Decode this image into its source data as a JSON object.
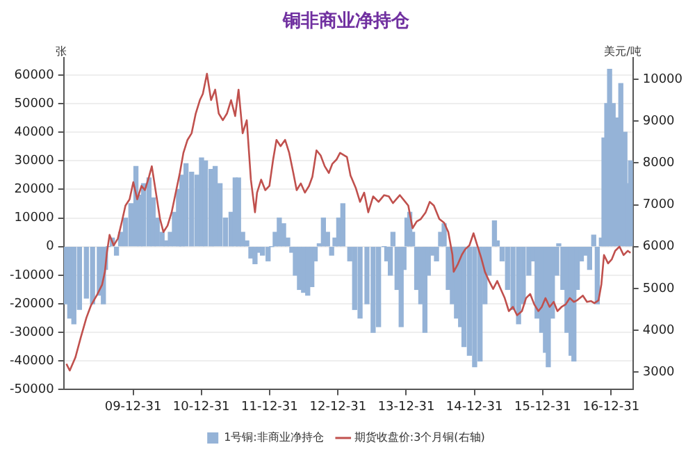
{
  "chart_data": {
    "type": "bar",
    "title": "铜非商业净持仓",
    "ylabel": "张",
    "y2label": "美元/吨",
    "xlim": [
      "2008-12-25",
      "2017-04-27"
    ],
    "xticks": [
      {
        "value": "2009-12-31",
        "label": "09-12-31"
      },
      {
        "value": "2010-12-31",
        "label": "10-12-31"
      },
      {
        "value": "2011-12-31",
        "label": "11-12-31"
      },
      {
        "value": "2012-12-31",
        "label": "12-12-31"
      },
      {
        "value": "2013-12-31",
        "label": "13-12-31"
      },
      {
        "value": "2014-12-31",
        "label": "14-12-31"
      },
      {
        "value": "2015-12-31",
        "label": "15-12-31"
      },
      {
        "value": "2016-12-31",
        "label": "16-12-31"
      }
    ],
    "ylim": [
      -50000,
      66000
    ],
    "yticks": [
      -50000,
      -40000,
      -30000,
      -20000,
      -10000,
      0,
      10000,
      20000,
      30000,
      40000,
      50000,
      60000
    ],
    "y2lim": [
      2585,
      10510
    ],
    "y2ticks": [
      3000,
      4000,
      5000,
      6000,
      7000,
      8000,
      9000,
      10000
    ],
    "grid": "y",
    "legend": "bottom",
    "series": [
      {
        "name": "1号铜:非商业净持仓",
        "color": "#95b3d7",
        "x": [
          "2009-01-08",
          "2009-01-26",
          "2009-02-17",
          "2009-03-19",
          "2009-04-25",
          "2009-05-28",
          "2009-07-03",
          "2009-07-25",
          "2009-08-05",
          "2009-08-20",
          "2009-09-11",
          "2009-10-03",
          "2009-10-25",
          "2009-11-20",
          "2009-12-19",
          "2010-01-15",
          "2010-02-06",
          "2010-02-25",
          "2010-03-26",
          "2010-04-17",
          "2010-05-09",
          "2010-06-04",
          "2010-06-26",
          "2010-07-18",
          "2010-08-09",
          "2010-08-31",
          "2010-09-18",
          "2010-10-10",
          "2010-11-09",
          "2010-12-08",
          "2011-01-01",
          "2011-01-22",
          "2011-02-21",
          "2011-03-15",
          "2011-04-10",
          "2011-05-09",
          "2011-06-08",
          "2011-06-30",
          "2011-07-18",
          "2011-08-09",
          "2011-08-31",
          "2011-09-22",
          "2011-10-14",
          "2011-11-01",
          "2011-11-23",
          "2011-12-23",
          "2012-01-11",
          "2012-01-30",
          "2012-02-21",
          "2012-03-15",
          "2012-04-06",
          "2012-04-28",
          "2012-05-17",
          "2012-06-08",
          "2012-06-30",
          "2012-07-22",
          "2012-08-13",
          "2012-08-31",
          "2012-09-22",
          "2012-10-14",
          "2012-11-05",
          "2012-11-27",
          "2012-12-15",
          "2013-01-04",
          "2013-01-26",
          "2013-03-04",
          "2013-03-30",
          "2013-04-28",
          "2013-06-04",
          "2013-07-07",
          "2013-08-05",
          "2013-09-04",
          "2013-09-18",
          "2013-10-07",
          "2013-10-21",
          "2013-11-12",
          "2013-12-04",
          "2013-12-19",
          "2014-01-04",
          "2014-01-19",
          "2014-02-03",
          "2014-02-25",
          "2014-03-19",
          "2014-04-10",
          "2014-04-28",
          "2014-05-20",
          "2014-06-11",
          "2014-07-03",
          "2014-07-22",
          "2014-08-13",
          "2014-09-04",
          "2014-09-26",
          "2014-10-18",
          "2014-11-05",
          "2014-12-04",
          "2015-01-01",
          "2015-01-30",
          "2015-02-25",
          "2015-03-19",
          "2015-04-17",
          "2015-05-02",
          "2015-05-28",
          "2015-06-26",
          "2015-07-25",
          "2015-08-24",
          "2015-09-18",
          "2015-10-18",
          "2015-11-09",
          "2015-12-01",
          "2015-12-26",
          "2016-01-15",
          "2016-01-30",
          "2016-02-21",
          "2016-03-15",
          "2016-03-26",
          "2016-04-17",
          "2016-05-09",
          "2016-05-31",
          "2016-06-15",
          "2016-07-03",
          "2016-07-25",
          "2016-08-16",
          "2016-09-07",
          "2016-09-29",
          "2016-10-18",
          "2016-11-09",
          "2016-11-23",
          "2016-12-08",
          "2016-12-23",
          "2017-01-11",
          "2017-01-30",
          "2017-02-21",
          "2017-03-15",
          "2017-03-30",
          "2017-04-14"
        ],
        "values": [
          -20000,
          -25000,
          -27000,
          -22000,
          -18000,
          -20000,
          -17000,
          -20000,
          -8000,
          0,
          3000,
          -3000,
          5000,
          10000,
          15000,
          28000,
          18000,
          22000,
          24000,
          17000,
          10000,
          5000,
          2000,
          5000,
          12000,
          20000,
          25000,
          29000,
          26000,
          25000,
          31000,
          30000,
          27000,
          28000,
          22000,
          10000,
          12000,
          24000,
          24000,
          5000,
          2000,
          -4000,
          -6000,
          -2000,
          -3000,
          -5000,
          0,
          5000,
          10000,
          8000,
          3000,
          -2000,
          -10000,
          -15000,
          -16000,
          -17000,
          -14000,
          -5000,
          1000,
          10000,
          5000,
          -3000,
          3000,
          10000,
          15000,
          -5000,
          -22000,
          -25000,
          -20000,
          -30000,
          -28000,
          0,
          -5000,
          -10000,
          5000,
          -15000,
          -28000,
          -8000,
          10000,
          12000,
          5000,
          -15000,
          -20000,
          -30000,
          -10000,
          -3000,
          -5000,
          5000,
          8000,
          -15000,
          -20000,
          -25000,
          -28000,
          -35000,
          -38000,
          -42000,
          -40000,
          -20000,
          -10000,
          9000,
          2000,
          -5000,
          -15000,
          -22000,
          -27000,
          -20000,
          -10000,
          -5000,
          -25000,
          -30000,
          -37000,
          -42000,
          -25000,
          -10000,
          1000,
          -15000,
          -30000,
          -38000,
          -40000,
          -15000,
          -5000,
          -3000,
          -8000,
          4000,
          -20000,
          3000,
          38000,
          50000,
          62000,
          50000,
          45000,
          57000,
          40000,
          22000,
          30000
        ]
      },
      {
        "name": "期货收盘价:3个月铜(右轴)",
        "type": "line",
        "axis": "y2",
        "color": "#c0504d",
        "x": [
          "2009-01-08",
          "2009-01-26",
          "2009-02-25",
          "2009-03-26",
          "2009-04-25",
          "2009-05-20",
          "2009-06-19",
          "2009-07-18",
          "2009-08-02",
          "2009-08-13",
          "2009-08-27",
          "2009-09-18",
          "2009-10-10",
          "2009-11-01",
          "2009-11-20",
          "2009-12-12",
          "2010-01-01",
          "2010-01-22",
          "2010-02-14",
          "2010-03-04",
          "2010-03-26",
          "2010-04-10",
          "2010-05-02",
          "2010-05-24",
          "2010-06-11",
          "2010-07-03",
          "2010-07-25",
          "2010-08-16",
          "2010-09-07",
          "2010-09-26",
          "2010-10-18",
          "2010-11-09",
          "2010-12-01",
          "2010-12-23",
          "2011-01-08",
          "2011-01-30",
          "2011-02-21",
          "2011-03-15",
          "2011-04-03",
          "2011-04-25",
          "2011-05-17",
          "2011-06-08",
          "2011-06-30",
          "2011-07-18",
          "2011-08-09",
          "2011-08-31",
          "2011-09-22",
          "2011-10-14",
          "2011-10-25",
          "2011-11-16",
          "2011-12-08",
          "2011-12-30",
          "2012-01-19",
          "2012-02-06",
          "2012-02-28",
          "2012-03-23",
          "2012-04-14",
          "2012-05-06",
          "2012-05-24",
          "2012-06-15",
          "2012-07-07",
          "2012-07-29",
          "2012-08-16",
          "2012-09-07",
          "2012-09-29",
          "2012-10-21",
          "2012-11-12",
          "2012-12-01",
          "2012-12-23",
          "2013-01-11",
          "2013-02-17",
          "2013-03-08",
          "2013-04-06",
          "2013-04-28",
          "2013-05-20",
          "2013-06-11",
          "2013-07-07",
          "2013-08-05",
          "2013-09-04",
          "2013-09-29",
          "2013-10-21",
          "2013-11-27",
          "2013-12-26",
          "2014-01-11",
          "2014-02-03",
          "2014-02-25",
          "2014-03-19",
          "2014-04-14",
          "2014-05-06",
          "2014-05-28",
          "2014-06-26",
          "2014-07-22",
          "2014-08-13",
          "2014-09-04",
          "2014-09-11",
          "2014-10-03",
          "2014-10-25",
          "2014-11-12",
          "2014-12-04",
          "2014-12-26",
          "2015-01-15",
          "2015-02-06",
          "2015-02-25",
          "2015-03-19",
          "2015-04-10",
          "2015-05-02",
          "2015-05-20",
          "2015-06-11",
          "2015-07-03",
          "2015-07-25",
          "2015-08-16",
          "2015-09-11",
          "2015-10-03",
          "2015-10-25",
          "2015-11-16",
          "2015-12-08",
          "2015-12-26",
          "2016-01-15",
          "2016-02-06",
          "2016-02-28",
          "2016-03-19",
          "2016-04-10",
          "2016-05-02",
          "2016-05-24",
          "2016-06-15",
          "2016-07-03",
          "2016-08-02",
          "2016-08-24",
          "2016-09-15",
          "2016-10-03",
          "2016-10-25",
          "2016-11-09",
          "2016-11-23",
          "2016-12-15",
          "2017-01-04",
          "2017-01-22",
          "2017-02-14",
          "2017-03-08",
          "2017-03-30",
          "2017-04-14"
        ],
        "values": [
          3200,
          3040,
          3350,
          3830,
          4300,
          4600,
          4830,
          5090,
          5400,
          5870,
          6280,
          6030,
          6190,
          6600,
          6980,
          7130,
          7540,
          7130,
          7450,
          7350,
          7670,
          7920,
          7290,
          6660,
          6350,
          6500,
          6820,
          7290,
          7760,
          8240,
          8550,
          8710,
          9180,
          9500,
          9650,
          10130,
          9500,
          9750,
          9180,
          9020,
          9180,
          9500,
          9120,
          9750,
          8710,
          9020,
          7600,
          6820,
          7290,
          7600,
          7350,
          7450,
          8080,
          8550,
          8400,
          8550,
          8240,
          7760,
          7350,
          7510,
          7290,
          7450,
          7670,
          8300,
          8180,
          7920,
          7760,
          7980,
          8080,
          8240,
          8140,
          7700,
          7390,
          7070,
          7290,
          6820,
          7200,
          7070,
          7230,
          7200,
          7040,
          7230,
          7070,
          6980,
          6440,
          6600,
          6660,
          6820,
          7070,
          6980,
          6660,
          6570,
          6350,
          5810,
          5400,
          5580,
          5810,
          5940,
          6030,
          6320,
          6030,
          5720,
          5400,
          5180,
          4990,
          5180,
          4990,
          4770,
          4460,
          4560,
          4360,
          4460,
          4770,
          4870,
          4620,
          4460,
          4560,
          4770,
          4560,
          4680,
          4460,
          4560,
          4620,
          4770,
          4680,
          4720,
          4830,
          4680,
          4700,
          4650,
          4720,
          5100,
          5800,
          5600,
          5700,
          5900,
          6000,
          5800,
          5900,
          5850
        ]
      }
    ]
  }
}
